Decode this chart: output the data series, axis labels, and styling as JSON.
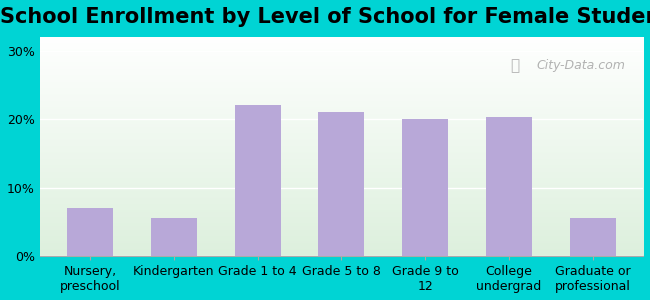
{
  "title": "School Enrollment by Level of School for Female Students",
  "categories": [
    "Nursery,\npreschool",
    "Kindergarten",
    "Grade 1 to 4",
    "Grade 5 to 8",
    "Grade 9 to\n12",
    "College\nundergrad",
    "Graduate or\nprofessional"
  ],
  "values": [
    7.0,
    5.5,
    22.0,
    21.0,
    20.0,
    20.3,
    5.5
  ],
  "bar_color": "#b8a8d8",
  "background_outer": "#00d4d4",
  "plot_bg_top": "#ddf0dd",
  "plot_bg_bottom": "#ffffff",
  "yticks": [
    0,
    10,
    20,
    30
  ],
  "ylim": [
    0,
    32
  ],
  "title_fontsize": 15,
  "tick_fontsize": 9,
  "watermark": "City-Data.com"
}
